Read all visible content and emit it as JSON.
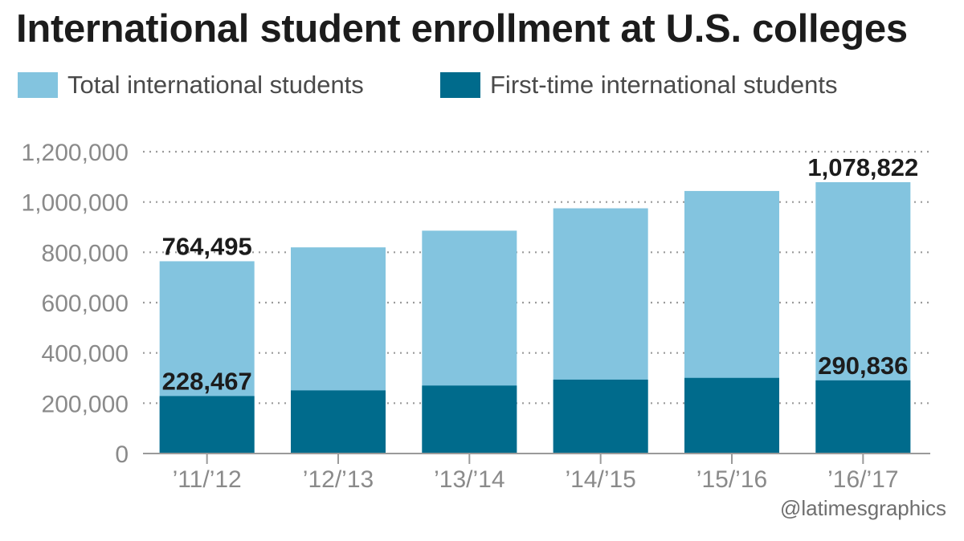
{
  "title": "International student enrollment at U.S. colleges",
  "credit": "@latimesgraphics",
  "colors": {
    "total": "#83c4df",
    "first_time": "#006b8c",
    "grid": "#9a9a9a",
    "axis": "#9a9a9a"
  },
  "chart_data": {
    "type": "bar",
    "stacking": "overlay",
    "categories": [
      "’11/’12",
      "’12/’13",
      "’13/’14",
      "’14/’15",
      "’15/’16",
      "’16/’17"
    ],
    "series": [
      {
        "name": "Total international students",
        "values": [
          764495,
          819644,
          886052,
          974926,
          1043839,
          1078822
        ]
      },
      {
        "name": "First-time international students",
        "values": [
          228467,
          250920,
          270128,
          293766,
          300743,
          290836
        ]
      }
    ],
    "ylim": [
      0,
      1200000
    ],
    "yticks": [
      0,
      200000,
      400000,
      600000,
      800000,
      1000000,
      1200000
    ],
    "ytick_labels": [
      "0",
      "200,000",
      "400,000",
      "600,000",
      "800,000",
      "1,000,000",
      "1,200,000"
    ],
    "grid": "horizontal dotted",
    "legend_position": "top-left",
    "data_labels": [
      {
        "series": 0,
        "index": 0,
        "text": "764,495"
      },
      {
        "series": 1,
        "index": 0,
        "text": "228,467"
      },
      {
        "series": 0,
        "index": 5,
        "text": "1,078,822"
      },
      {
        "series": 1,
        "index": 5,
        "text": "290,836"
      }
    ],
    "xlabel": "",
    "ylabel": ""
  }
}
